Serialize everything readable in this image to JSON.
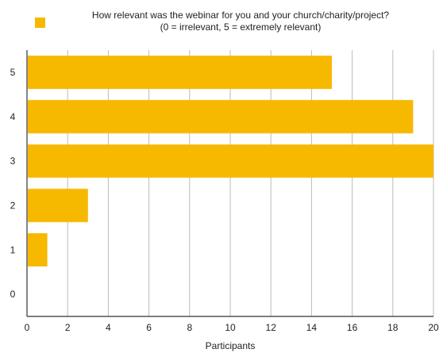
{
  "chart_data": {
    "type": "bar",
    "orientation": "horizontal",
    "legend_position": "top",
    "legend": [
      {
        "name_lines": [
          "How relevant was the webinar for you and your church/charity/project?",
          "(0 = irrelevant, 5 = extremely relevant)"
        ],
        "color": "#F7B800"
      }
    ],
    "categories": [
      "0",
      "1",
      "2",
      "3",
      "4",
      "5"
    ],
    "values": [
      0,
      1,
      3,
      20,
      19,
      15
    ],
    "xlabel": "Participants",
    "ylabel": "",
    "xlim": [
      0,
      20
    ],
    "xticks": [
      0,
      2,
      4,
      6,
      8,
      10,
      12,
      14,
      16,
      18,
      20
    ],
    "grid": true,
    "bar_color": "#F7B800",
    "grid_color": "#BBBBBB",
    "axis_color": "#333333"
  }
}
